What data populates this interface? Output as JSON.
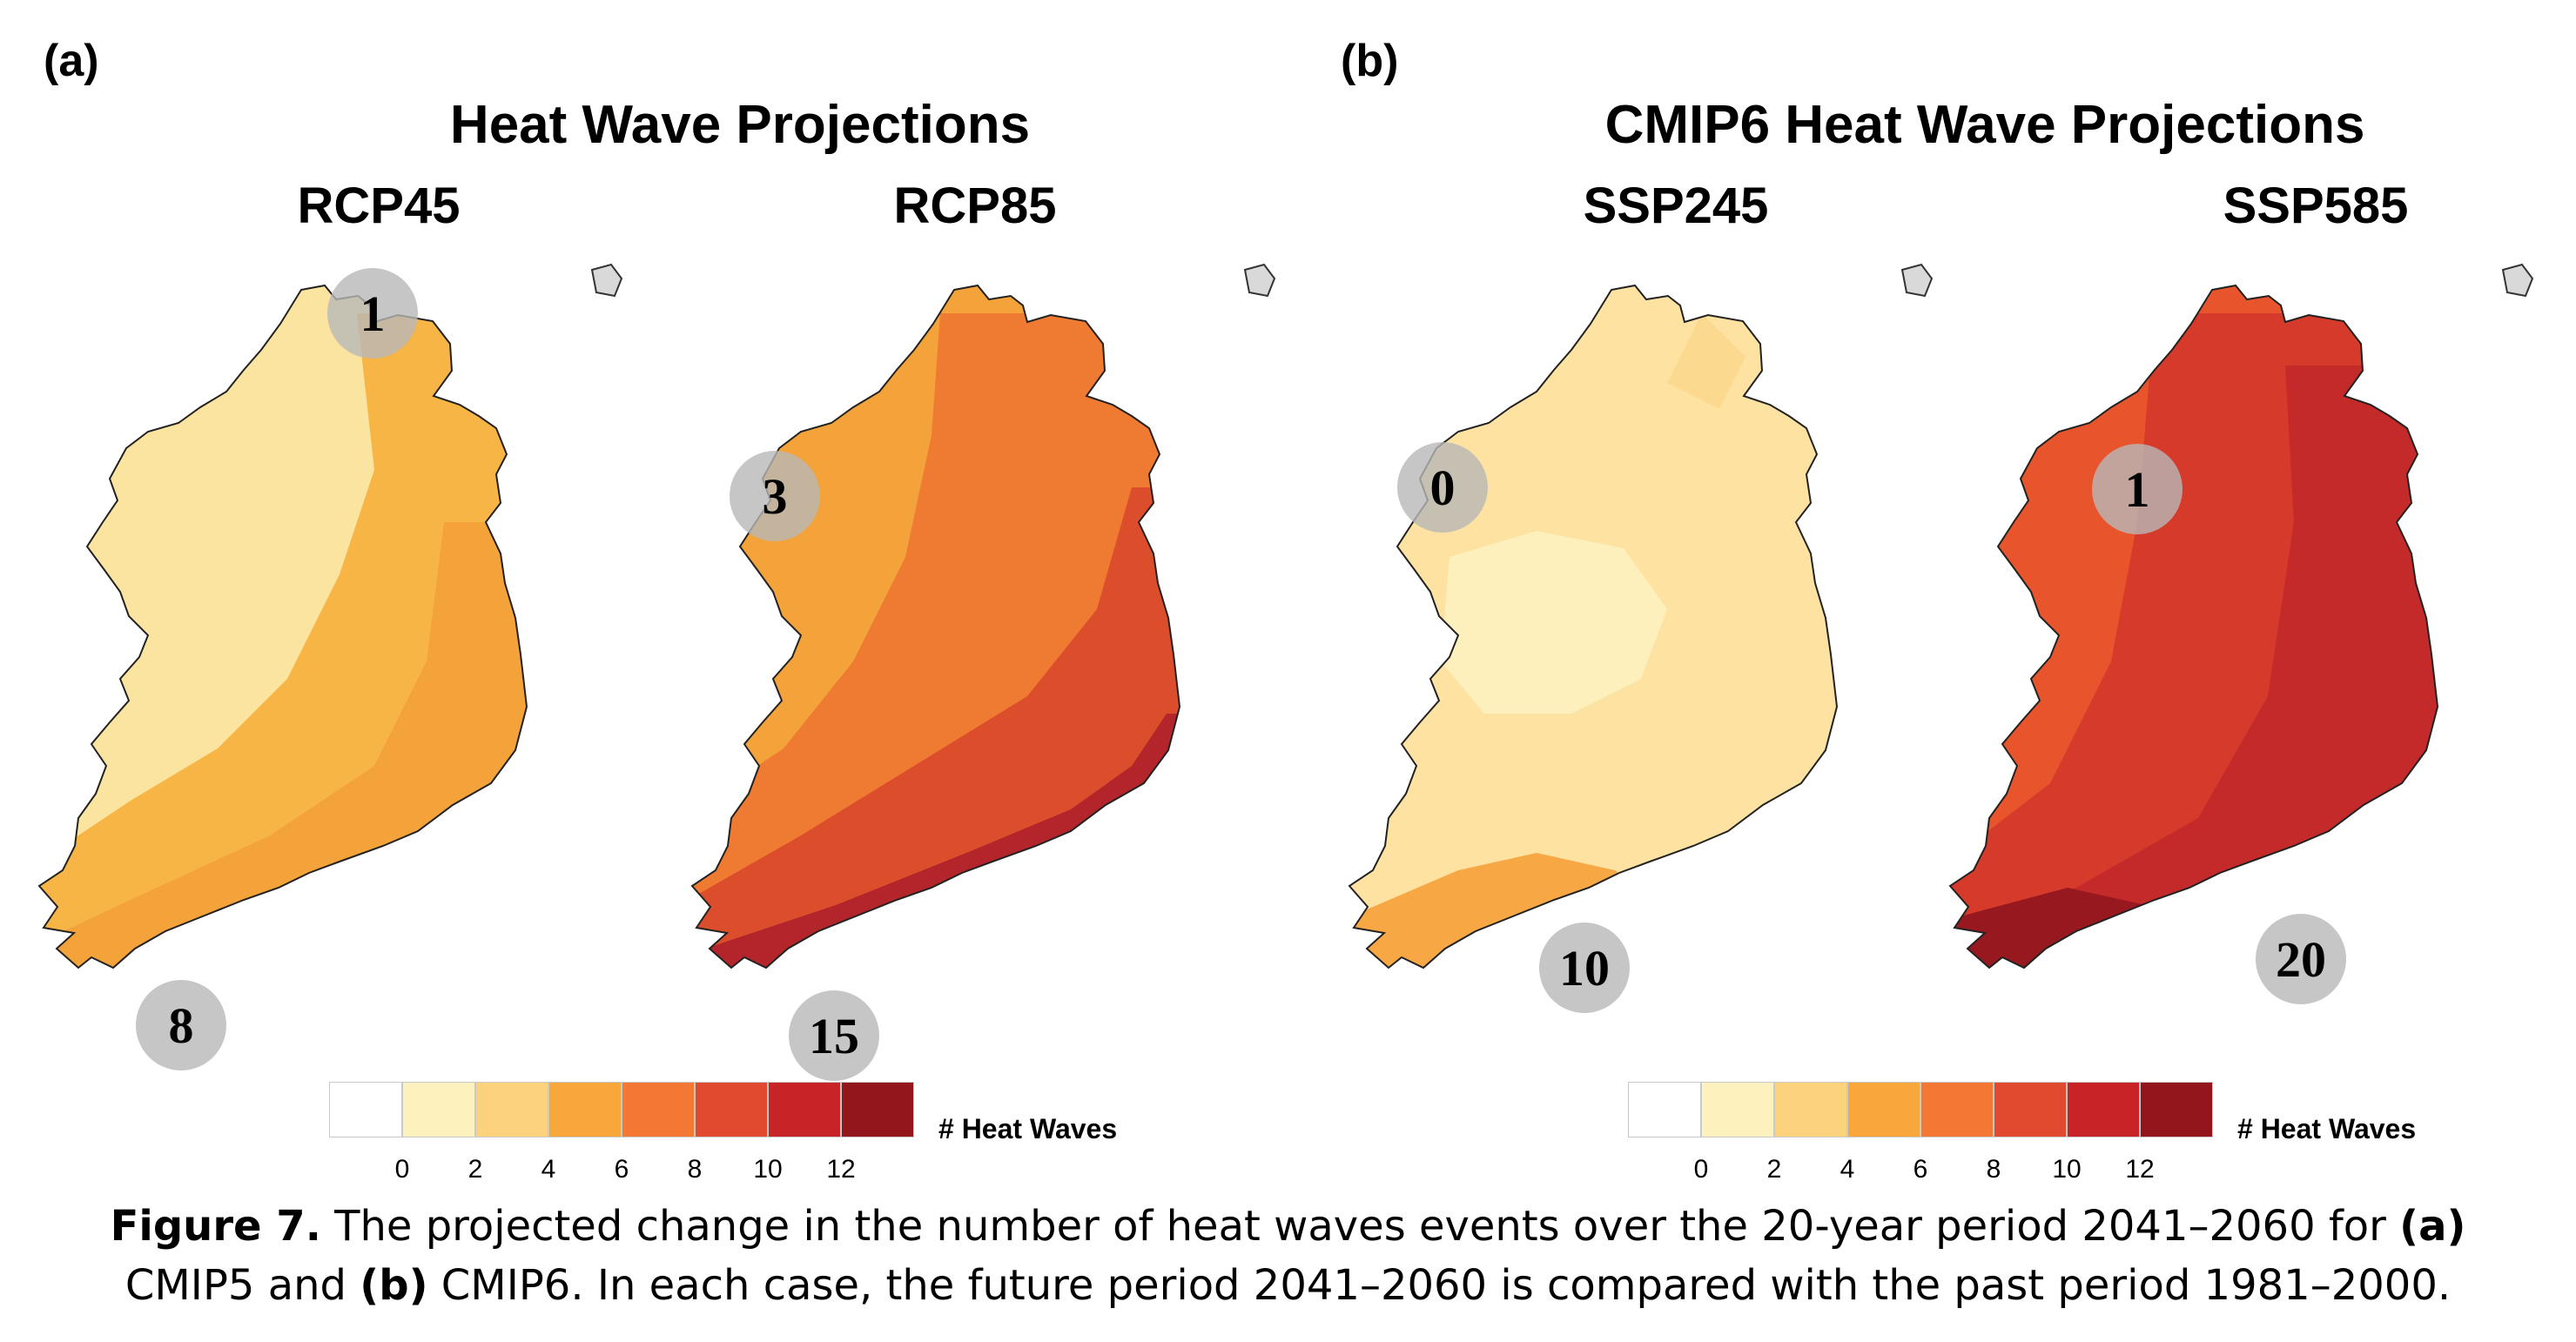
{
  "panels": [
    {
      "letter": "(a)",
      "title": "Heat Wave Projections",
      "maps": [
        {
          "scenario": "RCP45",
          "min_label": "1",
          "max_label": "8",
          "fills": [
            "#fbe3a0",
            "#f7b545",
            "#f4a33a",
            "#f4a33a"
          ]
        },
        {
          "scenario": "RCP85",
          "min_label": "3",
          "max_label": "15",
          "fills": [
            "#f4a33a",
            "#ef7b33",
            "#dc4d2c",
            "#b3252a"
          ]
        }
      ]
    },
    {
      "letter": "(b)",
      "title": "CMIP6 Heat Wave Projections",
      "maps": [
        {
          "scenario": "SSP245",
          "min_label": "0",
          "max_label": "10",
          "fills": [
            "#fde2a2",
            "#fdf0bd",
            "#fbd98e",
            "#f7a845"
          ]
        },
        {
          "scenario": "SSP585",
          "min_label": "1",
          "max_label": "20",
          "fills": [
            "#e8552d",
            "#d63a2a",
            "#c32a29",
            "#97191f"
          ]
        }
      ]
    }
  ],
  "colorbar": {
    "label": "# Heat Waves",
    "ticks": [
      "0",
      "2",
      "4",
      "6",
      "8",
      "10",
      "12"
    ],
    "colors": [
      "#ffffff",
      "#fdf1bd",
      "#fdd27d",
      "#f8a73b",
      "#f27834",
      "#e24a2f",
      "#c82428",
      "#92161c"
    ]
  },
  "caption": {
    "label": "Figure 7.",
    "line1_pre": " The projected change in the number of heat waves events over the 20-year period 2041–2060 for ",
    "ref_a": "(a)",
    "line2_pre": "CMIP5 and ",
    "ref_b": "(b)",
    "line2_post": " CMIP6. In each case, the future period 2041–2060 is compared with the past period 1981–2000."
  }
}
